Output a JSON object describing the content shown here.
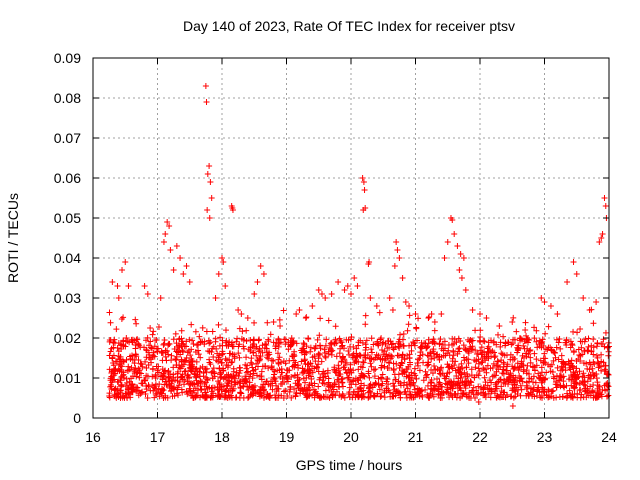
{
  "chart_data": {
    "type": "scatter",
    "title": "Day 140 of 2023, Rate Of TEC Index for receiver ptsv",
    "xlabel": "GPS time / hours",
    "ylabel": "ROTI / TECUs",
    "xlim": [
      16,
      24
    ],
    "ylim": [
      0,
      0.09
    ],
    "xticks": [
      "16",
      "17",
      "18",
      "19",
      "20",
      "21",
      "22",
      "23",
      "24"
    ],
    "yticks": [
      "0",
      "0.01",
      "0.02",
      "0.03",
      "0.04",
      "0.05",
      "0.06",
      "0.07",
      "0.08",
      "0.09"
    ],
    "grid": true,
    "marker": "+",
    "series_color": "#ff0000",
    "baseline_range": [
      0.005,
      0.02
    ],
    "x_data_range": [
      16.25,
      24.0
    ],
    "series": [
      {
        "name": "ROTI",
        "points": [
          [
            17.75,
            0.083
          ],
          [
            17.76,
            0.079
          ],
          [
            17.8,
            0.063
          ],
          [
            17.78,
            0.061
          ],
          [
            17.82,
            0.059
          ],
          [
            17.84,
            0.055
          ],
          [
            17.77,
            0.052
          ],
          [
            17.81,
            0.05
          ],
          [
            18.15,
            0.053
          ],
          [
            18.17,
            0.052
          ],
          [
            18.16,
            0.0525
          ],
          [
            20.18,
            0.06
          ],
          [
            20.2,
            0.059
          ],
          [
            20.21,
            0.057
          ],
          [
            20.19,
            0.052
          ],
          [
            20.22,
            0.0525
          ],
          [
            21.55,
            0.05
          ],
          [
            21.57,
            0.0495
          ],
          [
            21.6,
            0.046
          ],
          [
            21.65,
            0.043
          ],
          [
            21.7,
            0.041
          ],
          [
            21.75,
            0.04
          ],
          [
            21.68,
            0.037
          ],
          [
            21.72,
            0.035
          ],
          [
            21.78,
            0.032
          ],
          [
            21.5,
            0.044
          ],
          [
            21.45,
            0.04
          ],
          [
            23.93,
            0.055
          ],
          [
            23.95,
            0.053
          ],
          [
            23.96,
            0.05
          ],
          [
            23.9,
            0.046
          ],
          [
            23.88,
            0.045
          ],
          [
            23.85,
            0.044
          ],
          [
            17.15,
            0.049
          ],
          [
            17.18,
            0.048
          ],
          [
            17.12,
            0.046
          ],
          [
            17.1,
            0.044
          ],
          [
            17.2,
            0.042
          ],
          [
            17.3,
            0.043
          ],
          [
            17.35,
            0.04
          ],
          [
            17.45,
            0.038
          ],
          [
            17.4,
            0.036
          ],
          [
            17.5,
            0.034
          ],
          [
            17.25,
            0.037
          ],
          [
            16.3,
            0.034
          ],
          [
            16.38,
            0.033
          ],
          [
            16.45,
            0.037
          ],
          [
            16.5,
            0.039
          ],
          [
            16.55,
            0.033
          ],
          [
            16.4,
            0.03
          ],
          [
            16.8,
            0.033
          ],
          [
            16.85,
            0.031
          ],
          [
            17.05,
            0.03
          ],
          [
            18.0,
            0.04
          ],
          [
            18.02,
            0.039
          ],
          [
            17.95,
            0.036
          ],
          [
            18.05,
            0.033
          ],
          [
            17.9,
            0.03
          ],
          [
            18.6,
            0.038
          ],
          [
            18.65,
            0.036
          ],
          [
            18.55,
            0.034
          ],
          [
            18.5,
            0.031
          ],
          [
            19.5,
            0.032
          ],
          [
            19.55,
            0.031
          ],
          [
            19.6,
            0.03
          ],
          [
            19.7,
            0.031
          ],
          [
            19.8,
            0.034
          ],
          [
            19.9,
            0.032
          ],
          [
            19.95,
            0.033
          ],
          [
            20.05,
            0.035
          ],
          [
            20.0,
            0.031
          ],
          [
            20.1,
            0.033
          ],
          [
            20.28,
            0.039
          ],
          [
            20.27,
            0.0385
          ],
          [
            20.3,
            0.03
          ],
          [
            20.4,
            0.028
          ],
          [
            20.7,
            0.044
          ],
          [
            20.72,
            0.042
          ],
          [
            20.75,
            0.04
          ],
          [
            20.68,
            0.038
          ],
          [
            20.8,
            0.035
          ],
          [
            20.85,
            0.029
          ],
          [
            20.6,
            0.03
          ],
          [
            20.65,
            0.027
          ],
          [
            20.9,
            0.028
          ],
          [
            21.0,
            0.026
          ],
          [
            21.2,
            0.025
          ],
          [
            21.25,
            0.026
          ],
          [
            21.3,
            0.024
          ],
          [
            21.4,
            0.026
          ],
          [
            22.0,
            0.026
          ],
          [
            22.1,
            0.025
          ],
          [
            22.3,
            0.023
          ],
          [
            22.5,
            0.024
          ],
          [
            22.7,
            0.022
          ],
          [
            22.95,
            0.03
          ],
          [
            23.0,
            0.029
          ],
          [
            23.1,
            0.028
          ],
          [
            23.2,
            0.026
          ],
          [
            23.35,
            0.034
          ],
          [
            23.45,
            0.039
          ],
          [
            23.5,
            0.036
          ],
          [
            23.6,
            0.03
          ],
          [
            23.7,
            0.027
          ],
          [
            23.8,
            0.029
          ],
          [
            19.15,
            0.026
          ],
          [
            19.2,
            0.027
          ],
          [
            19.3,
            0.025
          ],
          [
            19.4,
            0.028
          ],
          [
            18.25,
            0.027
          ],
          [
            18.3,
            0.026
          ],
          [
            18.4,
            0.025
          ],
          [
            18.8,
            0.024
          ],
          [
            18.9,
            0.023
          ],
          [
            22.51,
            0.003
          ],
          [
            21.98,
            0.004
          ]
        ]
      }
    ]
  }
}
